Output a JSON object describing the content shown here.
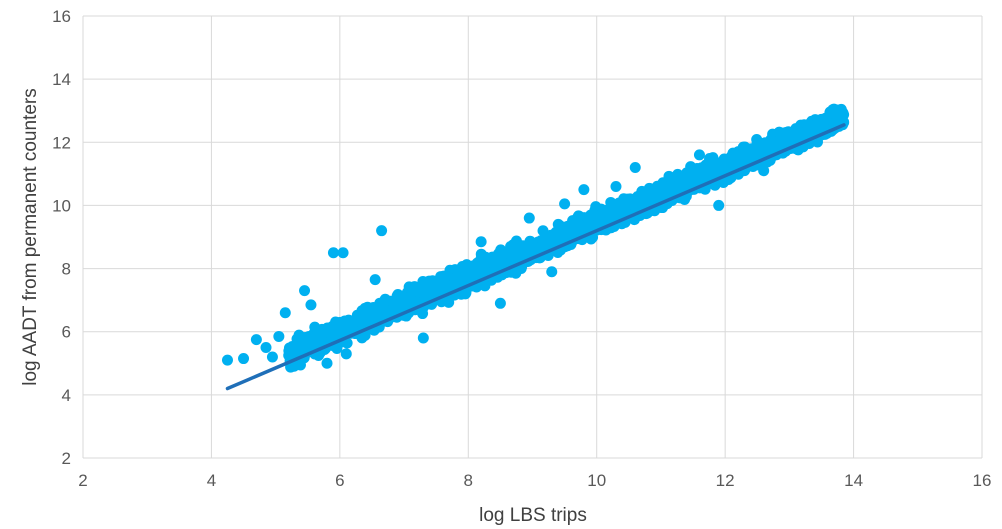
{
  "chart_data": {
    "type": "scatter",
    "title": "",
    "xlabel": "log LBS trips",
    "ylabel": "log AADT from permanent counters",
    "xlim": [
      2,
      16
    ],
    "ylim": [
      2,
      16
    ],
    "xticks": [
      2,
      4,
      6,
      8,
      10,
      12,
      14,
      16
    ],
    "yticks": [
      2,
      4,
      6,
      8,
      10,
      12,
      14,
      16
    ],
    "grid": true,
    "legend": "none",
    "colors": {
      "points": "#00b0f0",
      "trendline": "#1f6fb8",
      "grid": "#d9d9d9"
    },
    "trendline": {
      "x": [
        4.25,
        13.85
      ],
      "y": [
        4.2,
        12.55
      ]
    },
    "outliers": [
      {
        "x": 4.25,
        "y": 5.1
      },
      {
        "x": 4.5,
        "y": 5.15
      },
      {
        "x": 4.7,
        "y": 5.75
      },
      {
        "x": 4.85,
        "y": 5.5
      },
      {
        "x": 4.95,
        "y": 5.2
      },
      {
        "x": 5.05,
        "y": 5.85
      },
      {
        "x": 5.15,
        "y": 6.6
      },
      {
        "x": 5.45,
        "y": 7.3
      },
      {
        "x": 5.55,
        "y": 6.85
      },
      {
        "x": 5.9,
        "y": 8.5
      },
      {
        "x": 6.05,
        "y": 8.5
      },
      {
        "x": 6.65,
        "y": 9.2
      },
      {
        "x": 5.8,
        "y": 5.0
      },
      {
        "x": 6.1,
        "y": 5.3
      },
      {
        "x": 5.4,
        "y": 5.3
      },
      {
        "x": 6.55,
        "y": 7.65
      },
      {
        "x": 10.3,
        "y": 10.6
      },
      {
        "x": 10.6,
        "y": 11.2
      },
      {
        "x": 9.8,
        "y": 10.5
      },
      {
        "x": 10.7,
        "y": 10.05
      },
      {
        "x": 11.6,
        "y": 11.6
      },
      {
        "x": 7.3,
        "y": 5.8
      },
      {
        "x": 8.5,
        "y": 6.9
      },
      {
        "x": 11.9,
        "y": 10.0
      },
      {
        "x": 13.1,
        "y": 11.8
      },
      {
        "x": 12.6,
        "y": 11.1
      },
      {
        "x": 9.3,
        "y": 7.9
      },
      {
        "x": 8.95,
        "y": 9.6
      },
      {
        "x": 9.5,
        "y": 10.05
      },
      {
        "x": 8.2,
        "y": 8.85
      }
    ]
  }
}
